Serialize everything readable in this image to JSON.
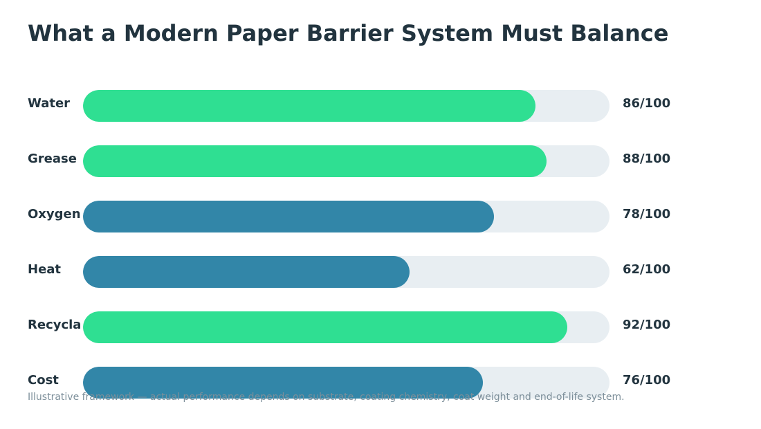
{
  "title": "What a Modern Paper Barrier System Must Balance",
  "footnote": "Illustrative framework — actual performance depends on substrate, coating chemistry, coat weight and end-of-life system.",
  "value_suffix": "/100",
  "colors": {
    "primary_bar": "#2fdf92",
    "secondary_bar": "#3286a8",
    "track": "#e8eef2",
    "text": "#22343f",
    "footnote": "#7d8f9a"
  },
  "chart_data": {
    "type": "bar",
    "orientation": "horizontal",
    "title": "What a Modern Paper Barrier System Must Balance",
    "xlim": [
      0,
      100
    ],
    "categories": [
      "Water",
      "Grease",
      "Oxygen",
      "Heat",
      "Recycla",
      "Cost"
    ],
    "values": [
      86,
      88,
      78,
      62,
      92,
      76
    ],
    "value_labels": [
      "86/100",
      "88/100",
      "78/100",
      "62/100",
      "92/100",
      "76/100"
    ],
    "bar_colors": [
      "#2fdf92",
      "#2fdf92",
      "#3286a8",
      "#3286a8",
      "#2fdf92",
      "#3286a8"
    ],
    "grid": false,
    "legend": "none"
  }
}
